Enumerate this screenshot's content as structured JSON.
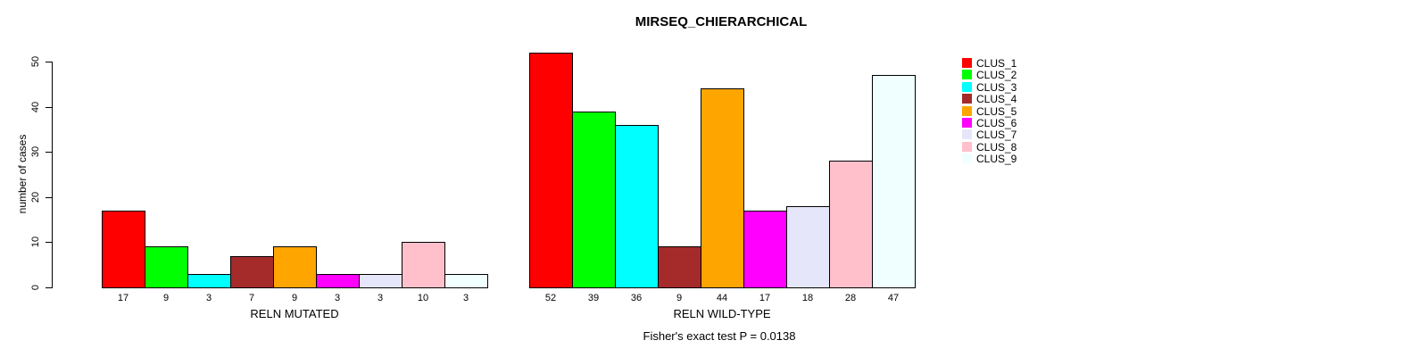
{
  "chart_data": {
    "type": "bar",
    "title": "MIRSEQ_CHIERARCHICAL",
    "ylabel": "number of cases",
    "xlabel": "",
    "ylim": [
      0,
      50
    ],
    "yticks": [
      0,
      10,
      20,
      30,
      40,
      50
    ],
    "grid": false,
    "legend_position": "right",
    "legend": [
      {
        "label": "CLUS_1",
        "color": "#FF0000"
      },
      {
        "label": "CLUS_2",
        "color": "#00FF00"
      },
      {
        "label": "CLUS_3",
        "color": "#00FFFF"
      },
      {
        "label": "CLUS_4",
        "color": "#A52A2A"
      },
      {
        "label": "CLUS_5",
        "color": "#FFA500"
      },
      {
        "label": "CLUS_6",
        "color": "#FF00FF"
      },
      {
        "label": "CLUS_7",
        "color": "#E6E6FA"
      },
      {
        "label": "CLUS_8",
        "color": "#FFC0CB"
      },
      {
        "label": "CLUS_9",
        "color": "#F0FFFF"
      }
    ],
    "groups": [
      {
        "label": "RELN MUTATED",
        "values": [
          17,
          9,
          3,
          7,
          9,
          3,
          3,
          10,
          3
        ]
      },
      {
        "label": "RELN WILD-TYPE",
        "values": [
          52,
          39,
          36,
          9,
          44,
          17,
          18,
          28,
          47
        ]
      }
    ],
    "annotation": "Fisher's exact test P = 0.0138"
  }
}
